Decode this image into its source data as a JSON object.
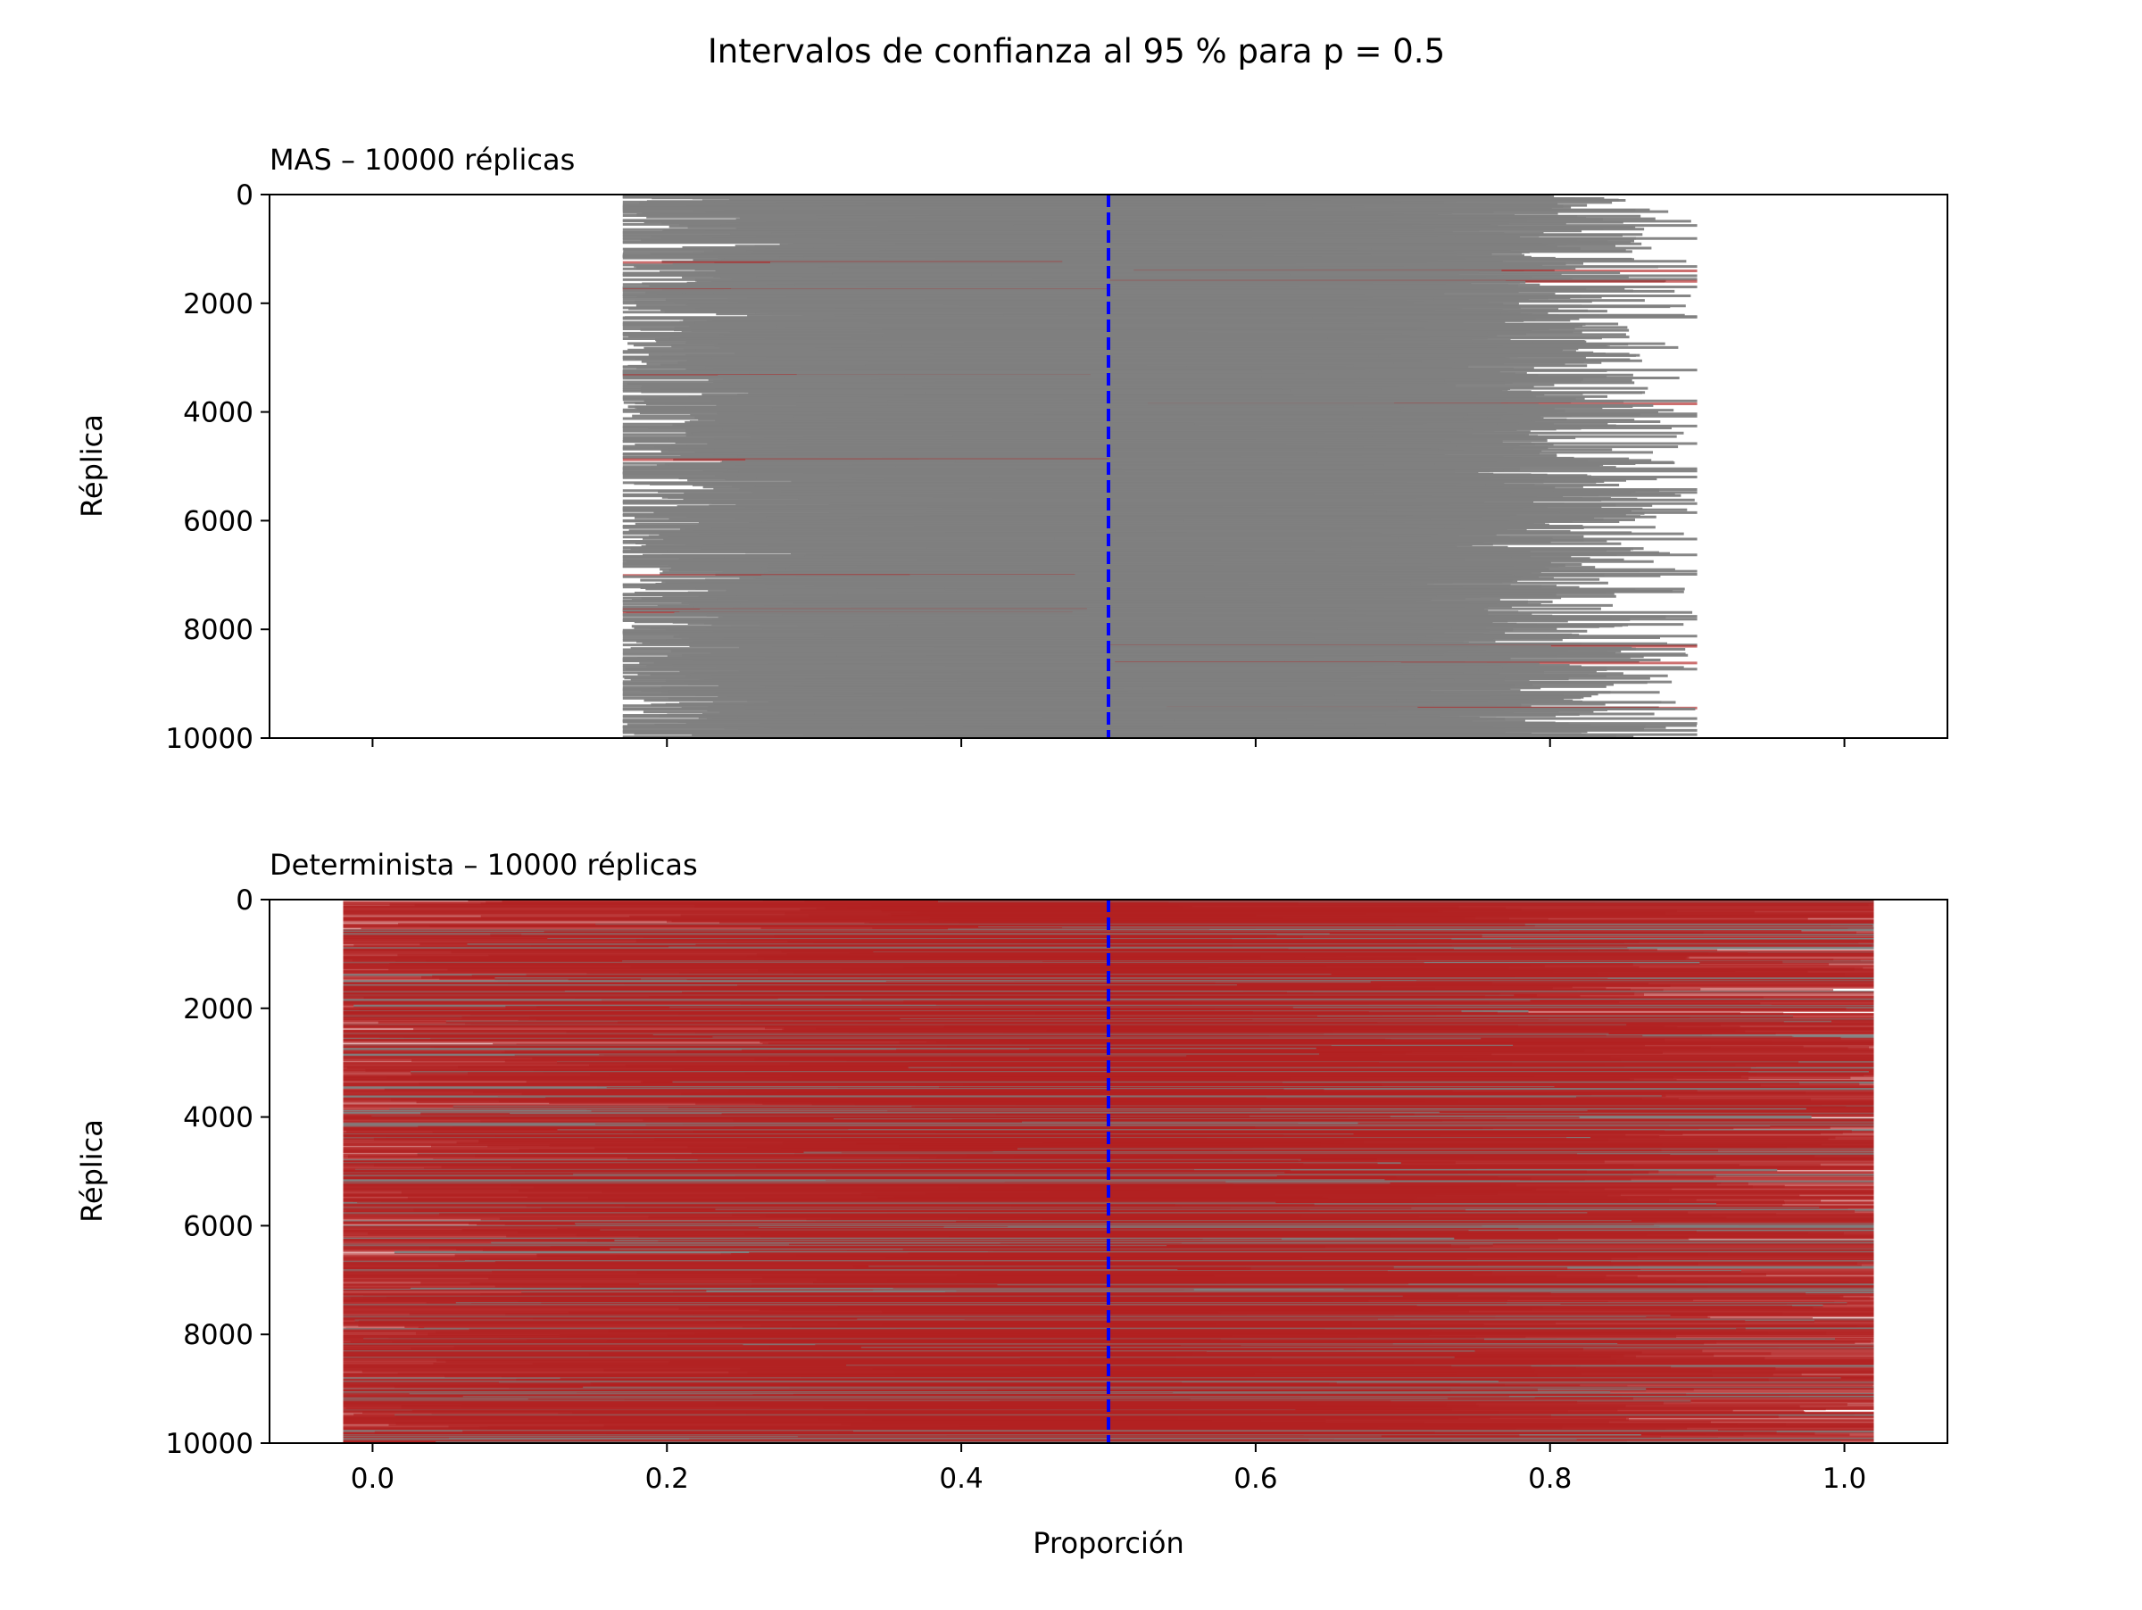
{
  "figure_title": "Intervalos de confianza al 95 % para p = 0.5",
  "colors": {
    "covering": "#808080",
    "missing": "#b22222",
    "true_value_line": "#0000ff",
    "frame": "#000000"
  },
  "chart_data": [
    {
      "type": "interval",
      "title": "MAS – 10000 réplicas",
      "xlabel": "",
      "ylabel": "Réplica",
      "xlim": [
        -0.07,
        1.07
      ],
      "ylim": [
        10000,
        0
      ],
      "y_inverted": true,
      "x_tick_labels_visible": false,
      "xticks": [
        0.0,
        0.2,
        0.4,
        0.6,
        0.8,
        1.0
      ],
      "yticks": [
        0,
        2000,
        4000,
        6000,
        8000,
        10000
      ],
      "ytick_labels": [
        "0",
        "2000",
        "4000",
        "6000",
        "8000",
        "10000"
      ],
      "reference_line": {
        "x": 0.5,
        "style": "dashed",
        "color": "#0000ff"
      },
      "n_replicates": 10000,
      "interval_center_range": [
        0.24,
        0.76
      ],
      "typical_interval_half_width": 0.26,
      "extreme_lower_bound": 0.17,
      "extreme_upper_bound": 0.9,
      "grid": false
    },
    {
      "type": "interval",
      "title": "Determinista – 10000 réplicas",
      "xlabel": "Proporción",
      "ylabel": "Réplica",
      "xlim": [
        -0.07,
        1.07
      ],
      "ylim": [
        10000,
        0
      ],
      "y_inverted": true,
      "x_tick_labels_visible": true,
      "xticks": [
        0.0,
        0.2,
        0.4,
        0.6,
        0.8,
        1.0
      ],
      "xtick_labels": [
        "0.0",
        "0.2",
        "0.4",
        "0.6",
        "0.8",
        "1.0"
      ],
      "yticks": [
        0,
        2000,
        4000,
        6000,
        8000,
        10000
      ],
      "ytick_labels": [
        "0",
        "2000",
        "4000",
        "6000",
        "8000",
        "10000"
      ],
      "reference_line": {
        "x": 0.5,
        "style": "dashed",
        "color": "#0000ff"
      },
      "n_replicates": 10000,
      "interval_center_range": [
        0.0,
        1.0
      ],
      "typical_interval_half_width": 0.5,
      "extreme_lower_bound": -0.02,
      "extreme_upper_bound": 1.02,
      "grid": false
    }
  ]
}
